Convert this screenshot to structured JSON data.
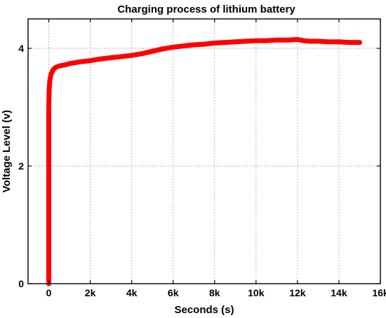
{
  "chart_data": {
    "type": "line",
    "title": "Charging process of lithium battery",
    "xlabel": "Seconds (s)",
    "ylabel": "Voltage Level (v)",
    "xlim": [
      -1000,
      16000
    ],
    "ylim": [
      0,
      4.5
    ],
    "x_ticks": [
      0,
      2000,
      4000,
      6000,
      8000,
      10000,
      12000,
      14000,
      16000
    ],
    "x_tick_labels": [
      "0",
      "2k",
      "4k",
      "6k",
      "8k",
      "10k",
      "12k",
      "14k",
      "16k"
    ],
    "y_ticks": [
      0,
      2,
      4
    ],
    "y_tick_labels": [
      "0",
      "2",
      "4"
    ],
    "grid": true,
    "series": [
      {
        "color": "#ff0000",
        "x": [
          0,
          0,
          20,
          50,
          100,
          200,
          300,
          500,
          800,
          1000,
          1500,
          2000,
          2500,
          3000,
          3500,
          4000,
          4500,
          5000,
          5500,
          6000,
          6500,
          7000,
          7500,
          8000,
          8500,
          9000,
          9500,
          10000,
          10500,
          11000,
          11500,
          12000,
          12300,
          12600,
          13000,
          13500,
          14000,
          14500,
          15000
        ],
        "y": [
          0,
          3.0,
          3.3,
          3.45,
          3.55,
          3.63,
          3.67,
          3.7,
          3.72,
          3.74,
          3.77,
          3.79,
          3.82,
          3.84,
          3.86,
          3.88,
          3.91,
          3.95,
          3.99,
          4.02,
          4.04,
          4.06,
          4.07,
          4.09,
          4.1,
          4.11,
          4.12,
          4.13,
          4.13,
          4.14,
          4.14,
          4.15,
          4.13,
          4.12,
          4.12,
          4.11,
          4.11,
          4.1,
          4.1
        ]
      }
    ]
  }
}
